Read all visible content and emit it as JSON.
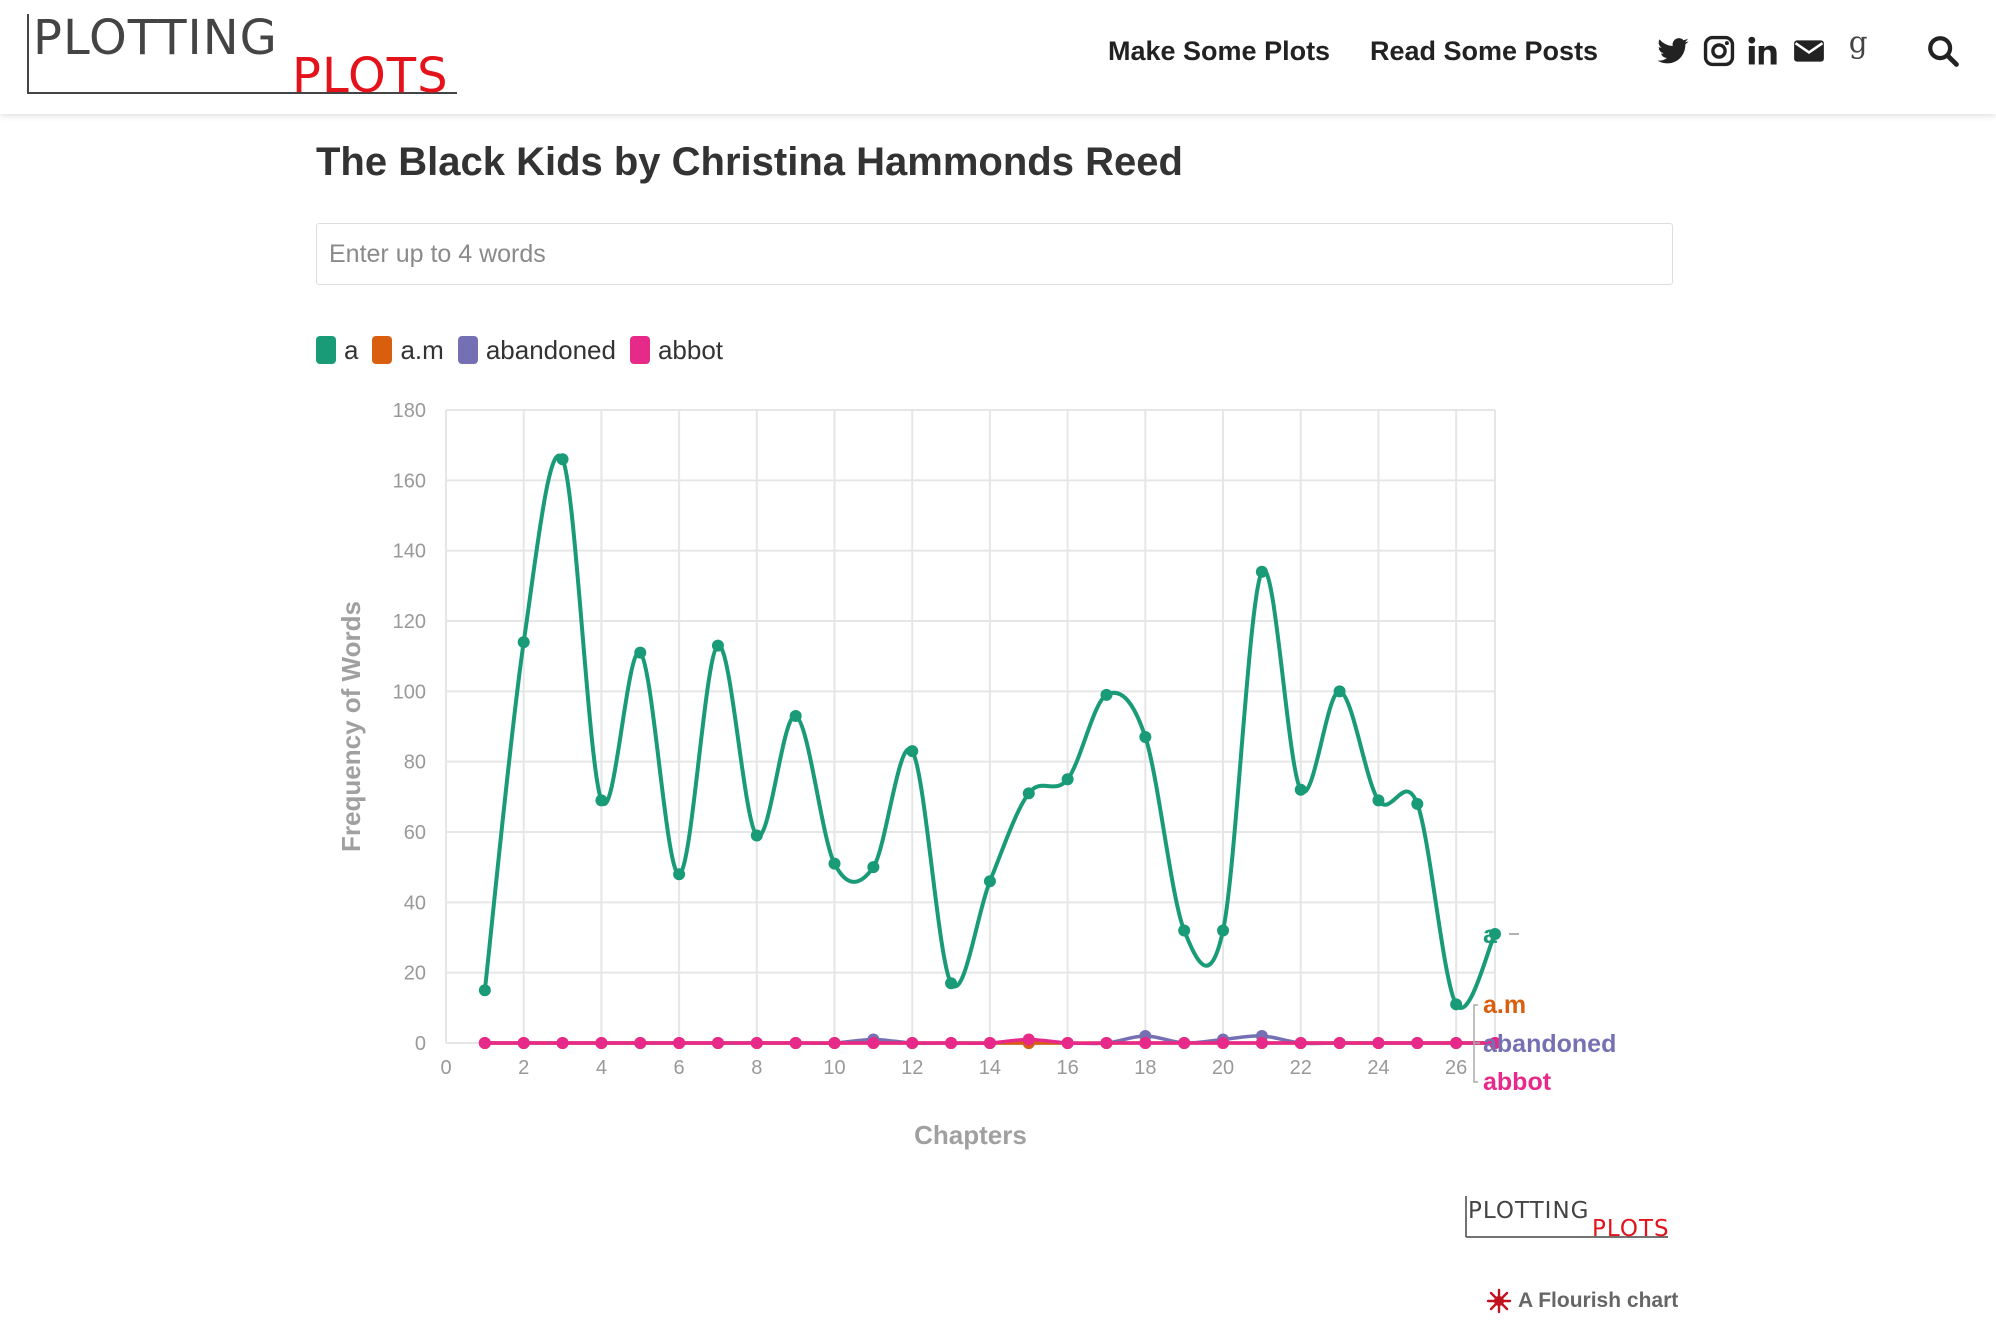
{
  "header": {
    "logo_top": "PLOTTING",
    "logo_bottom": "PLOTS",
    "nav": [
      {
        "label": "Make Some Plots"
      },
      {
        "label": "Read Some Posts"
      }
    ],
    "social_icons": [
      "twitter-icon",
      "instagram-icon",
      "linkedin-icon",
      "envelope-icon",
      "goodreads-icon"
    ],
    "search_icon": "search-icon"
  },
  "title": "The Black Kids by Christina Hammonds Reed",
  "search": {
    "placeholder": "Enter up to 4 words",
    "value": ""
  },
  "colors": {
    "a": "#1a9b77",
    "a.m": "#d95f0e",
    "abandoned": "#7570b3",
    "abbot": "#e7298a"
  },
  "chart_data": {
    "type": "line",
    "xlabel": "Chapters",
    "ylabel": "Frequency of Words",
    "xlim": [
      0,
      27
    ],
    "ylim": [
      0,
      180
    ],
    "xticks": [
      0,
      2,
      4,
      6,
      8,
      10,
      12,
      14,
      16,
      18,
      20,
      22,
      24,
      26
    ],
    "yticks": [
      0,
      20,
      40,
      60,
      80,
      100,
      120,
      140,
      160,
      180
    ],
    "grid": true,
    "legend": "top-left",
    "x": [
      1,
      2,
      3,
      4,
      5,
      6,
      7,
      8,
      9,
      10,
      11,
      12,
      13,
      14,
      15,
      16,
      17,
      18,
      19,
      20,
      21,
      22,
      23,
      24,
      25,
      26,
      27
    ],
    "series": [
      {
        "name": "a",
        "values": [
          15,
          114,
          166,
          69,
          111,
          48,
          113,
          59,
          93,
          51,
          50,
          83,
          17,
          46,
          71,
          75,
          99,
          87,
          32,
          32,
          134,
          72,
          100,
          69,
          68,
          11,
          31
        ]
      },
      {
        "name": "a.m",
        "values": [
          0,
          0,
          0,
          0,
          0,
          0,
          0,
          0,
          0,
          0,
          0,
          0,
          0,
          0,
          0,
          0,
          0,
          0,
          0,
          0,
          0,
          0,
          0,
          0,
          0,
          0,
          0
        ]
      },
      {
        "name": "abandoned",
        "values": [
          0,
          0,
          0,
          0,
          0,
          0,
          0,
          0,
          0,
          0,
          1,
          0,
          0,
          0,
          0,
          0,
          0,
          2,
          0,
          1,
          2,
          0,
          0,
          0,
          0,
          0,
          0
        ]
      },
      {
        "name": "abbot",
        "values": [
          0,
          0,
          0,
          0,
          0,
          0,
          0,
          0,
          0,
          0,
          0,
          0,
          0,
          0,
          1,
          0,
          0,
          0,
          0,
          0,
          0,
          0,
          0,
          0,
          0,
          0,
          0
        ]
      }
    ]
  },
  "footer": {
    "logo_top": "PLOTTING",
    "logo_bottom": "PLOTS",
    "flourish_label": "A Flourish chart"
  }
}
